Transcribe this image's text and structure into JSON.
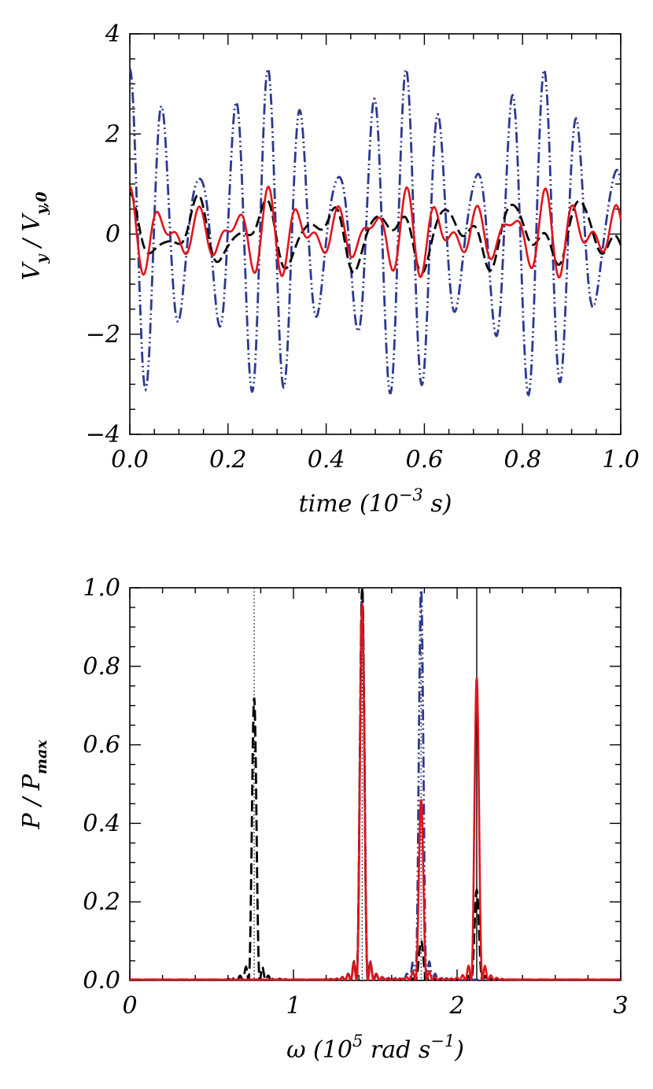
{
  "colors": {
    "blue": "#2b3990",
    "red": "#e0141c",
    "black": "#000000"
  },
  "chart_data": [
    {
      "type": "line",
      "xlabel": {
        "main": "time (10",
        "sup": "−3",
        "tail": " s)"
      },
      "ylabel": {
        "v": "V",
        "vsub": "y",
        "sep": " / V",
        "v0sub": "y,0"
      },
      "xlim": [
        0.0,
        1.0
      ],
      "ylim": [
        -4,
        4
      ],
      "xticks": [
        "0.0",
        "0.2",
        "0.4",
        "0.6",
        "0.8",
        "1.0"
      ],
      "yticks": [
        "−4",
        "−2",
        "0",
        "2",
        "4"
      ],
      "grid": false,
      "series": [
        {
          "style": "dash-dot-dot",
          "color": "#2b3990",
          "components": [
            {
              "amp": 2.2,
              "omega": 1.42
            },
            {
              "amp": 1.1,
              "omega": 1.78
            }
          ]
        },
        {
          "style": "dashed",
          "color": "#000000",
          "components": [
            {
              "amp": 0.42,
              "omega": 0.76
            },
            {
              "amp": 0.32,
              "omega": 1.42
            },
            {
              "amp": 0.08,
              "omega": 2.12
            }
          ]
        },
        {
          "style": "solid",
          "color": "#e0141c",
          "components": [
            {
              "amp": 0.42,
              "omega": 1.42
            },
            {
              "amp": 0.2,
              "omega": 1.78
            },
            {
              "amp": 0.33,
              "omega": 2.12
            }
          ]
        }
      ]
    },
    {
      "type": "line",
      "xlabel": {
        "main": "ω (10",
        "sup": "5",
        "tail": " rad s",
        "sup2": "−1",
        "tail2": ")"
      },
      "ylabel": {
        "v": "P",
        "sep": " / P",
        "v0sub": "max"
      },
      "xlim": [
        0,
        3
      ],
      "ylim": [
        0.0,
        1.0
      ],
      "xticks": [
        "0",
        "1",
        "2",
        "3"
      ],
      "yticks": [
        "0.0",
        "0.2",
        "0.4",
        "0.6",
        "0.8",
        "1.0"
      ],
      "grid": false,
      "vlines": [
        {
          "x": 0.76,
          "style": "dotted"
        },
        {
          "x": 1.42,
          "style": "dotted"
        },
        {
          "x": 1.78,
          "style": "dotted"
        },
        {
          "x": 2.12,
          "style": "solid"
        }
      ],
      "series": [
        {
          "style": "dash-dot-dot",
          "color": "#2b3990",
          "peaks": [
            {
              "omega": 1.42,
              "p": 1.0
            },
            {
              "omega": 1.78,
              "p": 1.0
            }
          ]
        },
        {
          "style": "dashed",
          "color": "#000000",
          "peaks": [
            {
              "omega": 0.76,
              "p": 0.72
            },
            {
              "omega": 1.42,
              "p": 1.0
            },
            {
              "omega": 1.78,
              "p": 0.1
            },
            {
              "omega": 2.12,
              "p": 0.23
            }
          ]
        },
        {
          "style": "solid",
          "color": "#e0141c",
          "peaks": [
            {
              "omega": 1.42,
              "p": 0.96
            },
            {
              "omega": 1.78,
              "p": 0.46
            },
            {
              "omega": 2.12,
              "p": 0.77
            }
          ]
        }
      ]
    }
  ]
}
